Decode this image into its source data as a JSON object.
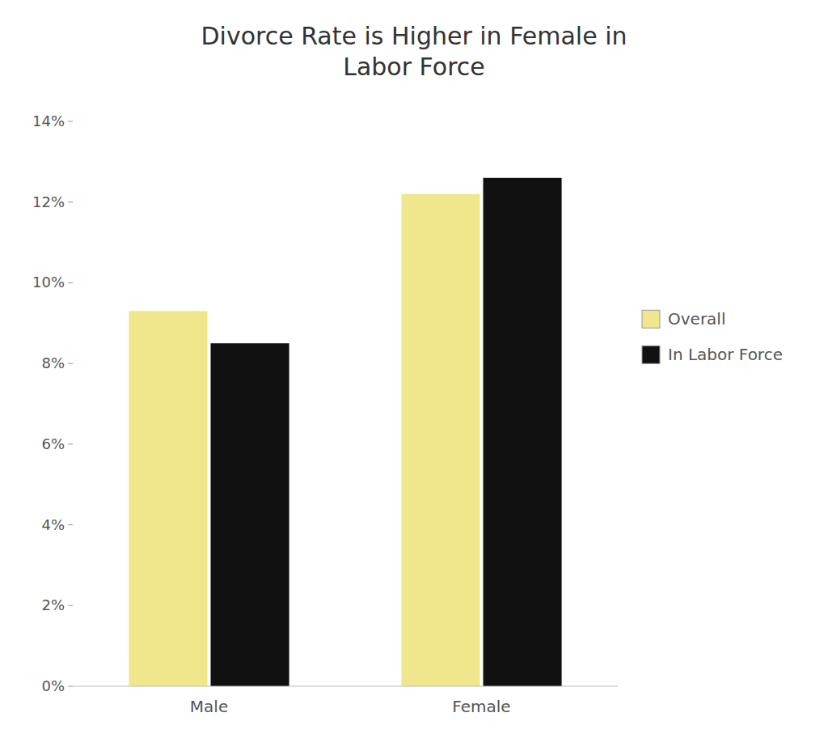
{
  "chart_data": {
    "type": "bar",
    "title": "Divorce Rate is Higher in Female in\nLabor Force",
    "categories": [
      "Male",
      "Female"
    ],
    "series": [
      {
        "name": "Overall",
        "color": "#f0e68c",
        "values": [
          0.093,
          0.122
        ]
      },
      {
        "name": "In Labor Force",
        "color": "#111111",
        "values": [
          0.085,
          0.126
        ]
      }
    ],
    "ylim": [
      0,
      0.14
    ],
    "yticks": [
      {
        "value": 0.0,
        "label": "0%"
      },
      {
        "value": 0.02,
        "label": "2%"
      },
      {
        "value": 0.04,
        "label": "4%"
      },
      {
        "value": 0.06,
        "label": "6%"
      },
      {
        "value": 0.08,
        "label": "8%"
      },
      {
        "value": 0.1,
        "label": "10%"
      },
      {
        "value": 0.12,
        "label": "12%"
      },
      {
        "value": 0.14,
        "label": "14%"
      }
    ],
    "grid": false,
    "legend": "right"
  }
}
